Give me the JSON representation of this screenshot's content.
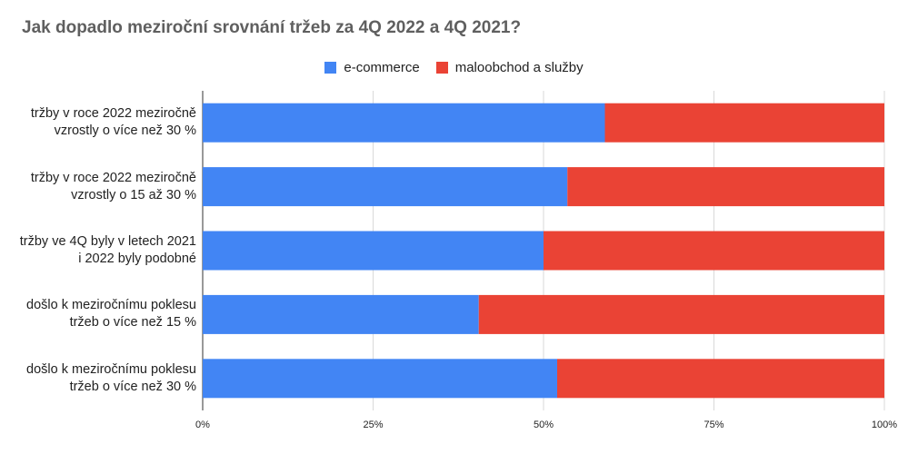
{
  "chart_data": {
    "type": "bar",
    "orientation": "horizontal",
    "stacked": "percent",
    "title": "Jak dopadlo meziroční srovnání tržeb za 4Q 2022 a 4Q 2021?",
    "categories": [
      "tržby v roce 2022 meziročně vzrostly o více než 30 %",
      "tržby v roce 2022 meziročně vzrostly o 15 až 30 %",
      "tržby ve 4Q byly v letech 2021 i 2022 byly podobné",
      "došlo k meziročnímu poklesu tržeb o více než 15 %",
      "došlo k meziročnímu poklesu tržeb o více než 30 %"
    ],
    "series": [
      {
        "name": "e-commerce",
        "color": "#4285f4",
        "values": [
          59,
          53.5,
          50,
          40.5,
          52
        ]
      },
      {
        "name": "maloobchod a služby",
        "color": "#ea4335",
        "values": [
          41,
          46.5,
          50,
          59.5,
          48
        ]
      }
    ],
    "xlim": [
      0,
      100
    ],
    "xticks": [
      "0%",
      "25%",
      "50%",
      "75%",
      "100%"
    ],
    "grid": true,
    "legend_position": "top"
  }
}
